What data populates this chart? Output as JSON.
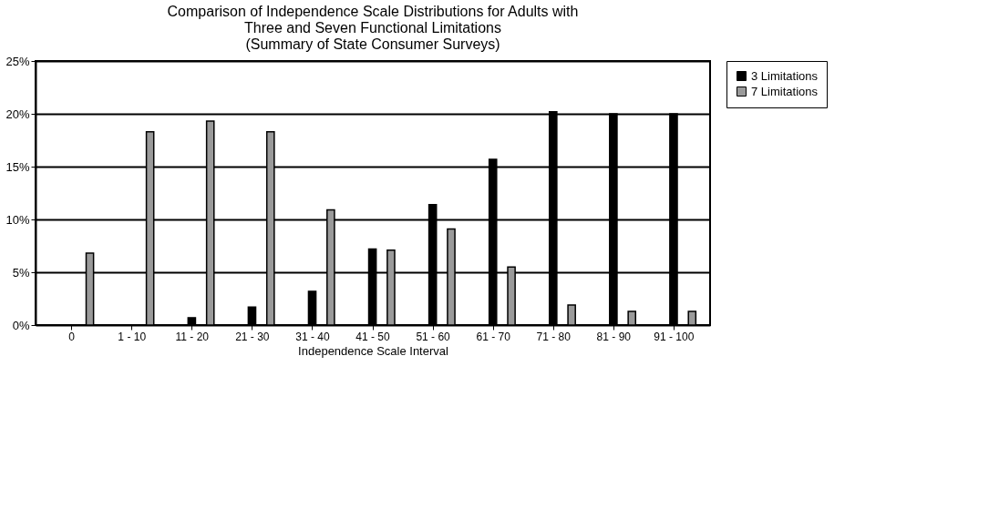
{
  "chart_data": {
    "type": "bar",
    "title": "Comparison of Independence Scale Distributions for Adults with Three and Seven Functional Limitations",
    "subtitle": "(Summary of State Consumer Surveys)",
    "xlabel": "Independence Scale Interval",
    "categories": [
      "0",
      "1 - 10",
      "11 - 20",
      "21 - 30",
      "31 - 40",
      "41 - 50",
      "51 - 60",
      "61 - 70",
      "71 - 80",
      "81 - 90",
      "91 - 100"
    ],
    "series": [
      {
        "name": "3 Limitations",
        "color": "#000000",
        "values": [
          0,
          0,
          0.7,
          1.7,
          3.2,
          7.2,
          11.4,
          15.7,
          20.2,
          20,
          20
        ]
      },
      {
        "name": "7 Limitations",
        "color": "#9a9a9a",
        "values": [
          6.8,
          18.3,
          19.3,
          18.3,
          10.9,
          7.1,
          9.1,
          5.5,
          1.9,
          1.3,
          1.3
        ]
      }
    ],
    "ylim": [
      0,
      25
    ],
    "yticks": [
      {
        "value": 0,
        "label": "0%"
      },
      {
        "value": 5,
        "label": "5%"
      },
      {
        "value": 10,
        "label": "10%"
      },
      {
        "value": 15,
        "label": "15%"
      },
      {
        "value": 20,
        "label": "20%"
      },
      {
        "value": 25,
        "label": "25%"
      }
    ],
    "grid": "y",
    "legend": "right"
  }
}
